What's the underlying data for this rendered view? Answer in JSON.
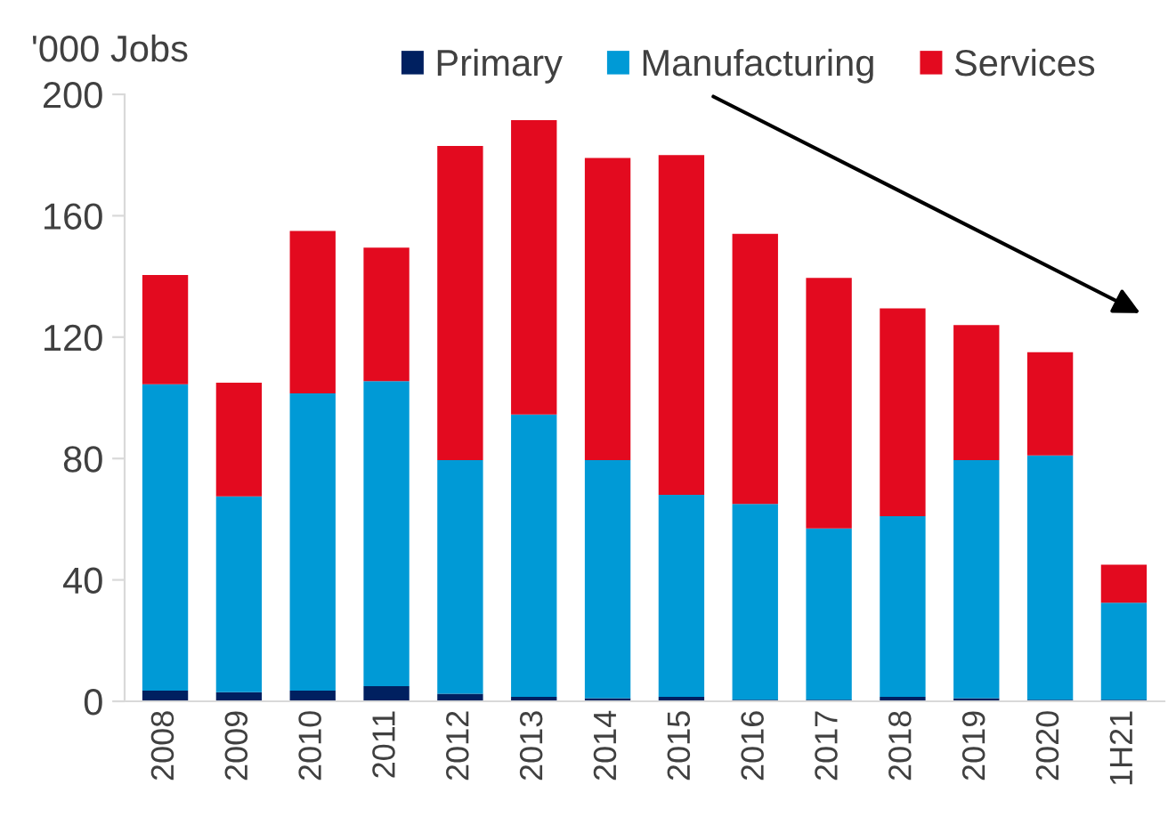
{
  "chart_data": {
    "type": "bar",
    "stacked": true,
    "ylabel": "'000 Jobs",
    "categories": [
      "2008",
      "2009",
      "2010",
      "2011",
      "2012",
      "2013",
      "2014",
      "2015",
      "2016",
      "2017",
      "2018",
      "2019",
      "2020",
      "1H21"
    ],
    "series": [
      {
        "name": "Primary",
        "color": "#002060",
        "values": [
          3.5,
          3,
          3.5,
          5,
          2.5,
          1.5,
          1,
          1.5,
          0.5,
          0.5,
          1.5,
          1,
          0.5,
          0.5
        ]
      },
      {
        "name": "Manufacturing",
        "color": "#009ad6",
        "values": [
          101,
          64.5,
          98,
          100.5,
          77,
          93,
          78.5,
          66.5,
          64.5,
          56.5,
          59.5,
          78.5,
          80.5,
          32
        ]
      },
      {
        "name": "Services",
        "color": "#e30a1f",
        "values": [
          36,
          37.5,
          53.5,
          44,
          103.5,
          97,
          99.5,
          112,
          89,
          82.5,
          68.5,
          44.5,
          34,
          12.5
        ]
      }
    ],
    "ylim": [
      0,
      200
    ],
    "yticks": [
      0,
      40,
      80,
      120,
      160,
      200
    ],
    "grid": false,
    "legend": "top"
  }
}
